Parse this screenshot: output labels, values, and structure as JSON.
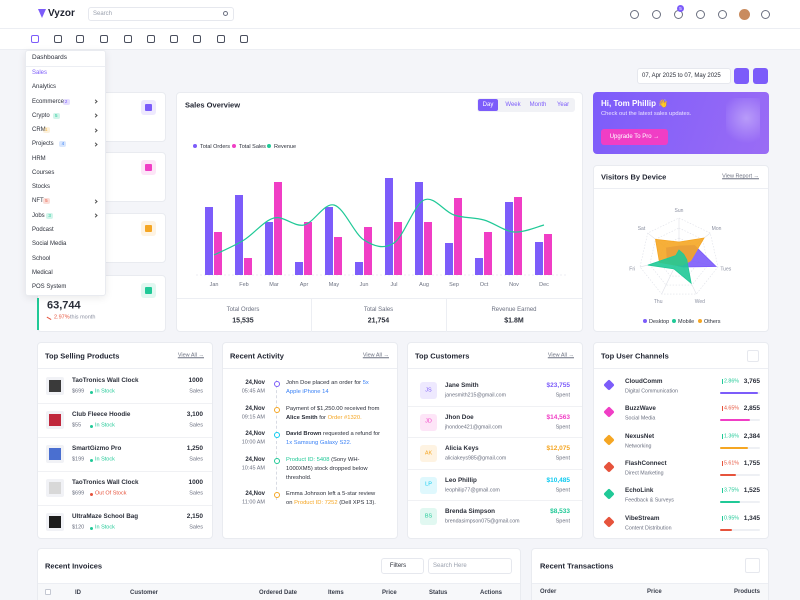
{
  "header": {
    "logo": "Vyzor",
    "search_placeholder": "Search",
    "cart_badge": "5"
  },
  "menu": {
    "title": "Dashboards",
    "items": [
      {
        "label": "Sales",
        "active": true
      },
      {
        "label": "Analytics"
      },
      {
        "label": "Ecommerce",
        "badge": "2",
        "badge_color": "#7c5cfa",
        "submenu": true
      },
      {
        "label": "Crypto",
        "badge": "5",
        "badge_color": "#20c997",
        "submenu": true
      },
      {
        "label": "CRM",
        "badge": "1",
        "badge_color": "#f5b849",
        "submenu": true
      },
      {
        "label": "Projects",
        "badge": "4",
        "badge_color": "#3b82f6",
        "submenu": true
      },
      {
        "label": "HRM"
      },
      {
        "label": "Courses"
      },
      {
        "label": "Stocks"
      },
      {
        "label": "NFT",
        "badge": "5",
        "badge_color": "#e6533c",
        "submenu": true
      },
      {
        "label": "Jobs",
        "badge": "3",
        "badge_color": "#20c997",
        "submenu": true
      },
      {
        "label": "Podcast"
      },
      {
        "label": "Social Media"
      },
      {
        "label": "School"
      },
      {
        "label": "Medical"
      },
      {
        "label": "POS System"
      }
    ]
  },
  "stat": {
    "value": "63,744",
    "change": "2.97%",
    "period": "this month"
  },
  "date_range": "07, Apr 2025 to 07, May 2025",
  "sales_overview": {
    "title": "Sales Overview",
    "tabs": [
      "Day",
      "Week",
      "Month",
      "Year"
    ],
    "chart": {
      "type": "bar",
      "categories": [
        "Jan",
        "Feb",
        "Mar",
        "Apr",
        "May",
        "Jun",
        "Jul",
        "Aug",
        "Sep",
        "Oct",
        "Nov",
        "Dec"
      ],
      "ylim": [
        0,
        100
      ],
      "series": [
        {
          "name": "Total Orders",
          "color": "#7c5cfa",
          "values": [
            68,
            80,
            53,
            13,
            68,
            13,
            97,
            93,
            32,
            17,
            73,
            33
          ]
        },
        {
          "name": "Total Sales",
          "color": "#f03ec5",
          "values": [
            43,
            17,
            93,
            53,
            38,
            48,
            53,
            53,
            77,
            43,
            78,
            41
          ]
        },
        {
          "name": "Revenue",
          "color": "#20c997",
          "type": "line",
          "values": [
            20,
            35,
            57,
            50,
            70,
            35,
            32,
            75,
            60,
            55,
            43,
            50
          ]
        }
      ]
    },
    "summary": [
      {
        "label": "Total Orders",
        "value": "15,535"
      },
      {
        "label": "Total Sales",
        "value": "21,754"
      },
      {
        "label": "Revenue Earned",
        "value": "$1.8M"
      }
    ]
  },
  "greeting": {
    "title": "Hi, Tom Phillip 👋",
    "text": "Check out the latest sales updates.",
    "button": "Upgrade To Pro →"
  },
  "visitors": {
    "title": "Visitors By Device",
    "link": "View Report →",
    "chart": {
      "type": "radar",
      "axes": [
        "Sun",
        "Mon",
        "Tues",
        "Wed",
        "Thu",
        "Fri",
        "Sat"
      ],
      "rlim": [
        0,
        100
      ],
      "series": [
        {
          "name": "Desktop",
          "color": "#7c5cfa",
          "values": [
            30,
            50,
            95,
            25,
            20,
            30,
            40
          ]
        },
        {
          "name": "Mobile",
          "color": "#20c997",
          "values": [
            20,
            15,
            20,
            70,
            30,
            80,
            10
          ]
        },
        {
          "name": "Others",
          "color": "#f5a623",
          "values": [
            40,
            80,
            30,
            20,
            20,
            50,
            75
          ]
        }
      ]
    }
  },
  "top_products": {
    "title": "Top Selling Products",
    "link": "View All →",
    "unit_label": "Sales",
    "items": [
      {
        "name": "TaoTronics Wall Clock",
        "price": "$699",
        "status": "In Stock",
        "status_color": "#20c997",
        "sales": "1000"
      },
      {
        "name": "Club Fleece Hoodie",
        "price": "$55",
        "status": "In Stock",
        "status_color": "#20c997",
        "sales": "3,100"
      },
      {
        "name": "SmartGizmo Pro",
        "price": "$199",
        "status": "In Stock",
        "status_color": "#20c997",
        "sales": "1,250"
      },
      {
        "name": "TaoTronics Wall Clock",
        "price": "$699",
        "status": "Out Of Stock",
        "status_color": "#e6533c",
        "sales": "1000"
      },
      {
        "name": "UltraMaze School Bag",
        "price": "$120",
        "status": "In Stock",
        "status_color": "#20c997",
        "sales": "2,150"
      }
    ]
  },
  "recent_activity": {
    "title": "Recent Activity",
    "link": "View All →",
    "items": [
      {
        "date": "24,Nov",
        "time": "05:45 AM",
        "color": "#7c5cfa",
        "parts": [
          {
            "text": "John Doe placed an order for "
          },
          {
            "text": "5x Apple iPhone 14",
            "style": "link"
          }
        ]
      },
      {
        "date": "24,Nov",
        "time": "09:15 AM",
        "color": "#f5a623",
        "parts": [
          {
            "text": "Payment of $1,250.00 received from "
          },
          {
            "text": "Alice Smith",
            "style": "bold"
          },
          {
            "text": " for "
          },
          {
            "text": "Order #1320.",
            "style": "orange"
          }
        ]
      },
      {
        "date": "24,Nov",
        "time": "10:00 AM",
        "color": "#0dcaf0",
        "parts": [
          {
            "text": "David Brown",
            "style": "bold"
          },
          {
            "text": " requested a refund for "
          },
          {
            "text": "1x Samsung Galaxy S22.",
            "style": "link"
          }
        ]
      },
      {
        "date": "24,Nov",
        "time": "10:45 AM",
        "color": "#20c997",
        "parts": [
          {
            "text": "Product ID: 5408",
            "style": "green"
          },
          {
            "text": " (Sony WH-1000XM5) stock dropped below threshold."
          }
        ]
      },
      {
        "date": "24,Nov",
        "time": "11:00 AM",
        "color": "#f5a623",
        "parts": [
          {
            "text": "Emma Johnson left a 5-star review on "
          },
          {
            "text": "Product ID: 7252",
            "style": "orange"
          },
          {
            "text": " (Dell XPS 13)."
          }
        ]
      }
    ]
  },
  "top_customers": {
    "title": "Top Customers",
    "link": "View All →",
    "unit_label": "Spent",
    "items": [
      {
        "initials": "JS",
        "name": "Jane Smith",
        "email": "janesmith215@gmail.com",
        "amount": "$23,755",
        "color": "#7c5cfa"
      },
      {
        "initials": "JD",
        "name": "Jhon Doe",
        "email": "jhondoe421@gmail.com",
        "amount": "$14,563",
        "color": "#f03ec5"
      },
      {
        "initials": "AK",
        "name": "Alicia Keys",
        "email": "aliciakeys985@gmail.com",
        "amount": "$12,075",
        "color": "#f5a623"
      },
      {
        "initials": "LP",
        "name": "Leo Phillip",
        "email": "leophilip77@gmail.com",
        "amount": "$10,485",
        "color": "#0dcaf0"
      },
      {
        "initials": "BS",
        "name": "Brenda Simpson",
        "email": "brendasimpson075@gmail.com",
        "amount": "$8,533",
        "color": "#20c997"
      }
    ]
  },
  "top_channels": {
    "title": "Top User Channels",
    "items": [
      {
        "name": "CloudComm",
        "category": "Digital Communication",
        "change": "2.86%",
        "trend": "up",
        "value": "3,765",
        "color": "#7c5cfa"
      },
      {
        "name": "BuzzWave",
        "category": "Social Media",
        "change": "4.65%",
        "trend": "down",
        "value": "2,855",
        "color": "#f03ec5"
      },
      {
        "name": "NexusNet",
        "category": "Networking",
        "change": "1.36%",
        "trend": "up",
        "value": "2,384",
        "color": "#f5a623"
      },
      {
        "name": "FlashConnect",
        "category": "Direct Marketing",
        "change": "5.61%",
        "trend": "down",
        "value": "1,755",
        "color": "#e6533c"
      },
      {
        "name": "EchoLink",
        "category": "Feedback & Surveys",
        "change": "3.75%",
        "trend": "up",
        "value": "1,525",
        "color": "#20c997"
      },
      {
        "name": "VibeStream",
        "category": "Content Distribution",
        "change": "0.95%",
        "trend": "up",
        "value": "1,345",
        "color": "#e6533c"
      }
    ]
  },
  "recent_invoices": {
    "title": "Recent Invoices",
    "filter": "Filters",
    "search_placeholder": "Search Here",
    "columns": [
      "ID",
      "Customer",
      "Ordered Date",
      "Items",
      "Price",
      "Status",
      "Actions"
    ]
  },
  "recent_transactions": {
    "title": "Recent Transactions",
    "columns": [
      "Order",
      "Price",
      "Products"
    ]
  }
}
